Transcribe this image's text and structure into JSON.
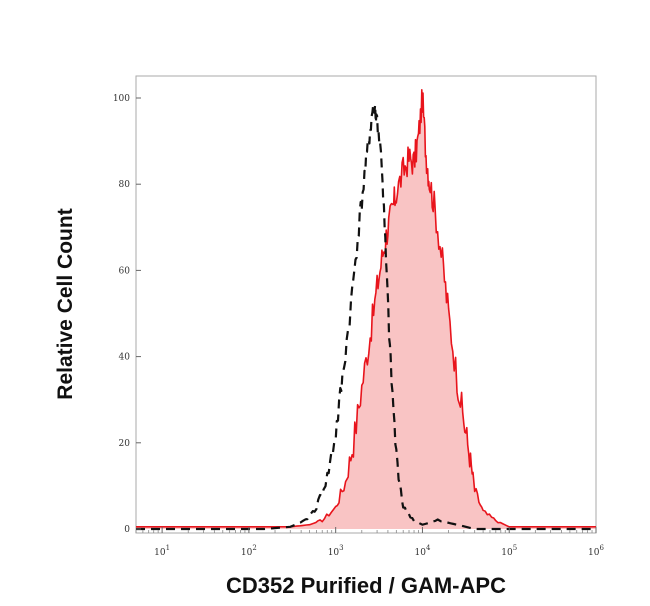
{
  "chart_data": {
    "type": "area",
    "xlabel": "CD352 Purified / GAM-APC",
    "ylabel": "Relative Cell Count",
    "x_scale": "log",
    "xlim": [
      5,
      1000000
    ],
    "ylim": [
      0,
      100
    ],
    "yticks": [
      0,
      20,
      40,
      60,
      80,
      100
    ],
    "xticks": [
      {
        "value": 10,
        "base": "10",
        "exp": "1"
      },
      {
        "value": 100,
        "base": "10",
        "exp": "2"
      },
      {
        "value": 1000,
        "base": "10",
        "exp": "3"
      },
      {
        "value": 10000,
        "base": "10",
        "exp": "4"
      },
      {
        "value": 100000,
        "base": "10",
        "exp": "5"
      },
      {
        "value": 1000000,
        "base": "10",
        "exp": "6"
      }
    ],
    "grid": false,
    "colors": {
      "stained_line": "#e8141c",
      "stained_fill": "#f9c4c4",
      "control_line": "#111111",
      "frame": "#aaaaaa"
    },
    "series": [
      {
        "style": "filled-solid",
        "x": [
          5,
          100,
          300,
          500,
          700,
          1000,
          1300,
          1600,
          2000,
          2500,
          3000,
          3500,
          4000,
          4500,
          5000,
          6000,
          7000,
          8000,
          9000,
          10000,
          11000,
          12000,
          14000,
          17000,
          20000,
          25000,
          30000,
          35000,
          40000,
          50000,
          70000,
          100000,
          1000000
        ],
        "y": [
          0.5,
          0.5,
          0.5,
          1,
          2,
          5,
          11,
          20,
          33,
          45,
          56,
          64,
          70,
          74,
          78,
          83,
          86,
          85,
          91,
          100,
          87,
          81,
          74,
          62,
          50,
          35,
          25,
          17,
          9,
          4,
          2,
          0.5,
          0.5
        ]
      },
      {
        "style": "dashed",
        "x": [
          5,
          150,
          300,
          450,
          600,
          800,
          1000,
          1200,
          1500,
          1800,
          2100,
          2400,
          2700,
          3000,
          3400,
          3800,
          4300,
          5000,
          6000,
          8000,
          10000,
          15000,
          25000,
          40000,
          100000,
          1000000
        ],
        "y": [
          0,
          0,
          0.5,
          2,
          5,
          12,
          22,
          35,
          52,
          68,
          80,
          90,
          98,
          95,
          85,
          62,
          38,
          17,
          5,
          2,
          1,
          2,
          1,
          0,
          0,
          0
        ]
      }
    ]
  }
}
